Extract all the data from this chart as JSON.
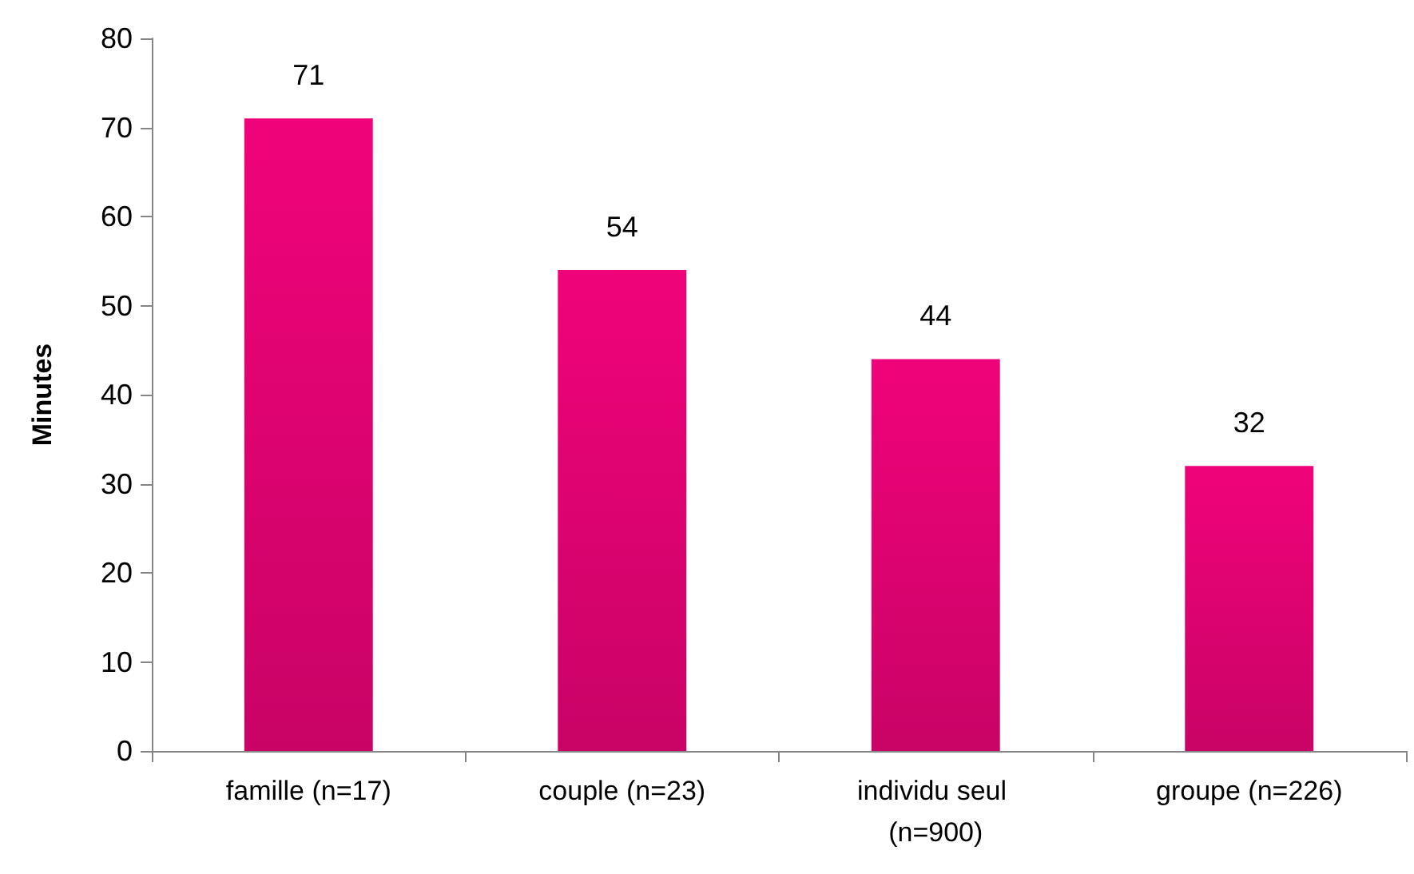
{
  "chart_data": {
    "type": "bar",
    "ylabel": "Minutes",
    "categories": [
      "famille (n=17)",
      "couple (n=23)",
      "individu seul (n=900)",
      "groupe (n=226)"
    ],
    "values": [
      71,
      54,
      44,
      32
    ],
    "color": "#f0037a",
    "ylim": [
      0,
      80
    ],
    "yticks": [
      0,
      10,
      20,
      30,
      40,
      50,
      60,
      70,
      80
    ],
    "grid": false,
    "data_labels": true
  }
}
